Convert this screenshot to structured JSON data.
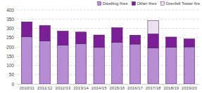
{
  "chart_data": {
    "type": "bar",
    "stacked": true,
    "grid": true,
    "legend": "top-right",
    "categories": [
      "2010/11",
      "2011/12",
      "2012/13",
      "2013/14",
      "2014/15",
      "2015/16",
      "2016/17",
      "2017/18",
      "2018/19",
      "2019/20"
    ],
    "series": [
      {
        "name": "Dwelling fires",
        "color": "#b68dd2",
        "values": [
          255,
          233,
          210,
          218,
          197,
          225,
          215,
          195,
          198,
          200
        ]
      },
      {
        "name": "Other fires",
        "color": "#7b1f96",
        "values": [
          80,
          82,
          75,
          62,
          67,
          78,
          48,
          75,
          55,
          43
        ]
      },
      {
        "name": "Grenfell Tower fire",
        "color": "#ebe0f2",
        "values": [
          null,
          null,
          null,
          null,
          null,
          null,
          null,
          71,
          null,
          null
        ]
      }
    ],
    "ylim": [
      0,
      400
    ],
    "yticks": [
      0,
      50,
      100,
      150,
      200,
      250,
      300,
      350,
      400
    ]
  }
}
